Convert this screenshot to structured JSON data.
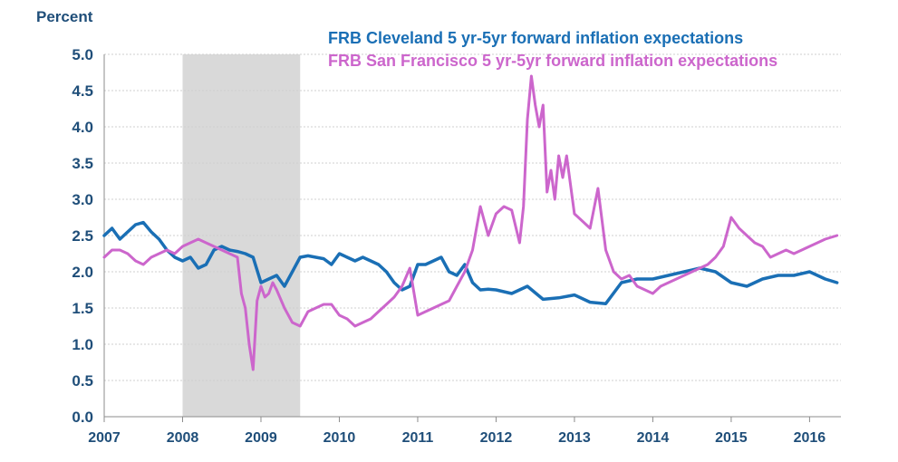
{
  "chart_data": {
    "type": "line",
    "title": "",
    "ylabel": "Percent",
    "xlabel": "",
    "ylim": [
      0.0,
      5.0
    ],
    "xlim": [
      2007.0,
      2016.4
    ],
    "y_ticks": [
      "0.0",
      "0.5",
      "1.0",
      "1.5",
      "2.0",
      "2.5",
      "3.0",
      "3.5",
      "4.0",
      "4.5",
      "5.0"
    ],
    "x_ticks": [
      "2007",
      "2008",
      "2009",
      "2010",
      "2011",
      "2012",
      "2013",
      "2014",
      "2015",
      "2016"
    ],
    "grid": true,
    "legend_position": "top-right",
    "recession_shading": {
      "start": 2008.0,
      "end": 2009.5,
      "color": "#d9d9d9"
    },
    "series": [
      {
        "name": "FRB Cleveland 5 yr-5yr forward inflation expectations",
        "color": "#1a6fb5",
        "x": [
          2007.0,
          2007.1,
          2007.2,
          2007.3,
          2007.4,
          2007.5,
          2007.6,
          2007.7,
          2007.8,
          2007.9,
          2008.0,
          2008.1,
          2008.2,
          2008.3,
          2008.4,
          2008.5,
          2008.6,
          2008.7,
          2008.8,
          2008.9,
          2009.0,
          2009.1,
          2009.2,
          2009.3,
          2009.4,
          2009.5,
          2009.6,
          2009.7,
          2009.8,
          2009.9,
          2010.0,
          2010.1,
          2010.2,
          2010.3,
          2010.4,
          2010.5,
          2010.6,
          2010.7,
          2010.8,
          2010.9,
          2011.0,
          2011.1,
          2011.2,
          2011.3,
          2011.4,
          2011.5,
          2011.6,
          2011.7,
          2011.8,
          2011.9,
          2012.0,
          2012.2,
          2012.4,
          2012.6,
          2012.8,
          2013.0,
          2013.2,
          2013.4,
          2013.6,
          2013.8,
          2014.0,
          2014.2,
          2014.4,
          2014.6,
          2014.8,
          2015.0,
          2015.2,
          2015.4,
          2015.6,
          2015.8,
          2016.0,
          2016.2,
          2016.35
        ],
        "y": [
          2.5,
          2.6,
          2.45,
          2.55,
          2.65,
          2.68,
          2.55,
          2.45,
          2.3,
          2.2,
          2.15,
          2.2,
          2.05,
          2.1,
          2.3,
          2.35,
          2.3,
          2.28,
          2.25,
          2.2,
          1.85,
          1.9,
          1.95,
          1.8,
          2.0,
          2.2,
          2.22,
          2.2,
          2.18,
          2.1,
          2.25,
          2.2,
          2.15,
          2.2,
          2.15,
          2.1,
          2.0,
          1.85,
          1.75,
          1.8,
          2.1,
          2.1,
          2.15,
          2.2,
          2.0,
          1.95,
          2.1,
          1.85,
          1.75,
          1.76,
          1.75,
          1.7,
          1.8,
          1.62,
          1.64,
          1.68,
          1.58,
          1.56,
          1.85,
          1.9,
          1.9,
          1.95,
          2.0,
          2.05,
          2.0,
          1.85,
          1.8,
          1.9,
          1.95,
          1.95,
          2.0,
          1.9,
          1.85
        ]
      },
      {
        "name": "FRB San Francisco 5 yr-5yr forward inflation expectations",
        "color": "#cc66cc",
        "x": [
          2007.0,
          2007.1,
          2007.2,
          2007.3,
          2007.4,
          2007.5,
          2007.6,
          2007.7,
          2007.8,
          2007.9,
          2008.0,
          2008.1,
          2008.2,
          2008.3,
          2008.4,
          2008.5,
          2008.6,
          2008.7,
          2008.75,
          2008.8,
          2008.85,
          2008.9,
          2008.95,
          2009.0,
          2009.05,
          2009.1,
          2009.15,
          2009.2,
          2009.3,
          2009.4,
          2009.5,
          2009.6,
          2009.7,
          2009.8,
          2009.9,
          2010.0,
          2010.1,
          2010.2,
          2010.3,
          2010.4,
          2010.5,
          2010.6,
          2010.7,
          2010.8,
          2010.9,
          2011.0,
          2011.1,
          2011.2,
          2011.3,
          2011.4,
          2011.5,
          2011.6,
          2011.7,
          2011.8,
          2011.9,
          2012.0,
          2012.1,
          2012.2,
          2012.3,
          2012.35,
          2012.4,
          2012.45,
          2012.5,
          2012.55,
          2012.6,
          2012.65,
          2012.7,
          2012.75,
          2012.8,
          2012.85,
          2012.9,
          2013.0,
          2013.1,
          2013.2,
          2013.3,
          2013.4,
          2013.5,
          2013.6,
          2013.7,
          2013.8,
          2013.9,
          2014.0,
          2014.1,
          2014.2,
          2014.3,
          2014.4,
          2014.5,
          2014.6,
          2014.7,
          2014.8,
          2014.9,
          2015.0,
          2015.1,
          2015.2,
          2015.3,
          2015.4,
          2015.5,
          2015.6,
          2015.7,
          2015.8,
          2015.9,
          2016.0,
          2016.1,
          2016.2,
          2016.35
        ],
        "y": [
          2.2,
          2.3,
          2.3,
          2.25,
          2.15,
          2.1,
          2.2,
          2.25,
          2.3,
          2.25,
          2.35,
          2.4,
          2.45,
          2.4,
          2.35,
          2.3,
          2.25,
          2.2,
          1.7,
          1.5,
          1.0,
          0.65,
          1.6,
          1.8,
          1.65,
          1.7,
          1.85,
          1.75,
          1.5,
          1.3,
          1.25,
          1.45,
          1.5,
          1.55,
          1.55,
          1.4,
          1.35,
          1.25,
          1.3,
          1.35,
          1.45,
          1.55,
          1.65,
          1.8,
          2.05,
          1.4,
          1.45,
          1.5,
          1.55,
          1.6,
          1.8,
          2.0,
          2.3,
          2.9,
          2.5,
          2.8,
          2.9,
          2.85,
          2.4,
          2.9,
          4.1,
          4.7,
          4.3,
          4.0,
          4.3,
          3.1,
          3.4,
          3.0,
          3.6,
          3.3,
          3.6,
          2.8,
          2.7,
          2.6,
          3.15,
          2.3,
          2.0,
          1.9,
          1.95,
          1.8,
          1.75,
          1.7,
          1.8,
          1.85,
          1.9,
          1.95,
          2.0,
          2.05,
          2.1,
          2.2,
          2.35,
          2.75,
          2.6,
          2.5,
          2.4,
          2.35,
          2.2,
          2.25,
          2.3,
          2.25,
          2.3,
          2.35,
          2.4,
          2.45,
          2.5
        ]
      }
    ]
  }
}
